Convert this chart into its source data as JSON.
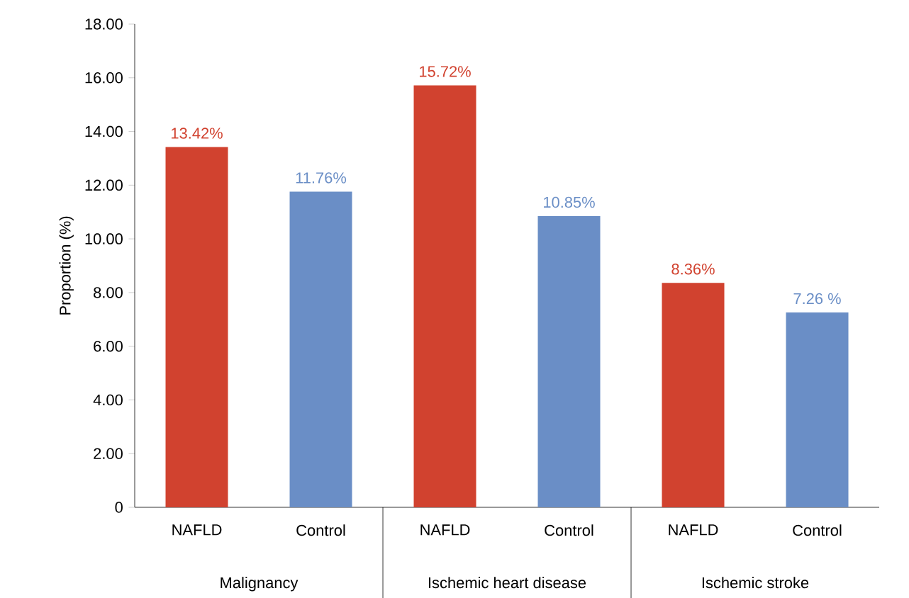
{
  "chart_data": {
    "type": "bar",
    "ylabel": "Proportion (%)",
    "categories": [
      "NAFLD",
      "Control",
      "NAFLD",
      "Control",
      "NAFLD",
      "Control"
    ],
    "values": [
      13.42,
      11.76,
      15.72,
      10.85,
      8.36,
      7.26
    ],
    "colors": [
      "#d1422f",
      "#6a8ec6",
      "#d1422f",
      "#6a8ec6",
      "#d1422f",
      "#6a8ec6"
    ],
    "value_labels": [
      "13.42%",
      "11.76%",
      "15.72%",
      "10.85%",
      "8.36%",
      "7.26 %"
    ],
    "annotations": [
      "Malignancy",
      "Ischemic heart disease",
      "Ischemic stroke"
    ],
    "ylim": [
      0,
      18
    ],
    "yticks": [
      0,
      {
        "value": 2,
        "label": "2.00"
      },
      {
        "value": 4,
        "label": "4.00"
      },
      {
        "value": 6,
        "label": "6.00"
      },
      {
        "value": 8,
        "label": "8.00"
      },
      {
        "value": 10,
        "label": "10.00"
      },
      {
        "value": 12,
        "label": "12.00"
      },
      {
        "value": 14,
        "label": "14.00"
      },
      {
        "value": 16,
        "label": "16.00"
      },
      {
        "value": 18,
        "label": "18.00"
      }
    ],
    "grid": false
  }
}
